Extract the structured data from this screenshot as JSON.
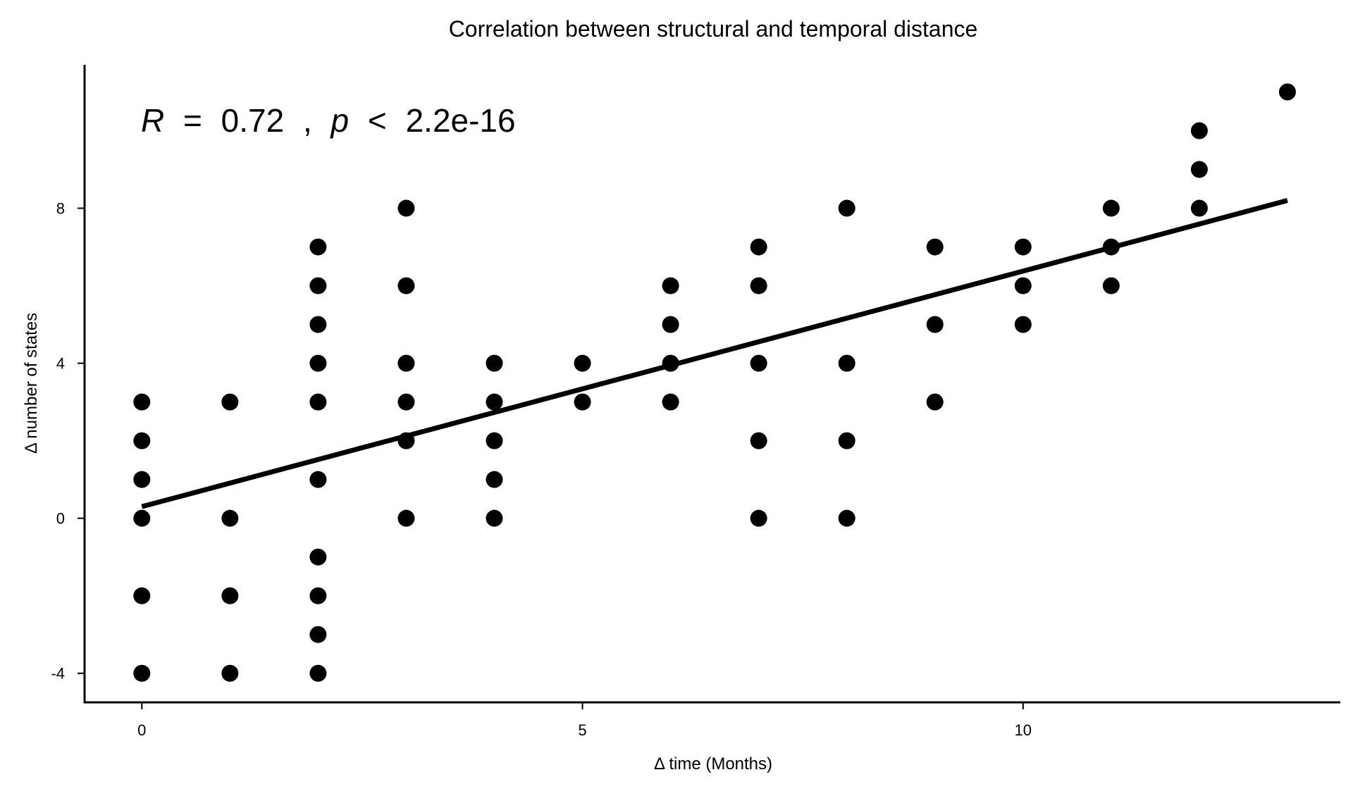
{
  "chart_data": {
    "type": "scatter",
    "title": "Correlation between structural and temporal distance",
    "xlabel": "Δ time (Months)",
    "ylabel": "Δ number of states",
    "xlim": [
      -0.65,
      13.6
    ],
    "ylim": [
      -4.75,
      11.7
    ],
    "x_ticks": [
      0,
      5,
      10
    ],
    "y_ticks": [
      -4,
      0,
      4,
      8
    ],
    "x_tick_labels": [
      "0",
      "5",
      "10"
    ],
    "y_tick_labels": [
      "-4",
      "0",
      "4",
      "8"
    ],
    "grid": false,
    "legend": "none",
    "point_color": "#000000",
    "annotation": {
      "R_symbol": "R",
      "equals": "=",
      "R_value": "0.72",
      "separator": ",",
      "p_symbol": "p",
      "less_than": "<",
      "p_value": "2.2e-16"
    },
    "fit_line": {
      "x": [
        0,
        13
      ],
      "y": [
        0.3,
        8.2
      ]
    },
    "points": [
      {
        "x": 0,
        "y": 3
      },
      {
        "x": 0,
        "y": 2
      },
      {
        "x": 0,
        "y": 1
      },
      {
        "x": 0,
        "y": 0
      },
      {
        "x": 0,
        "y": -2
      },
      {
        "x": 0,
        "y": -4
      },
      {
        "x": 1,
        "y": 3
      },
      {
        "x": 1,
        "y": 0
      },
      {
        "x": 1,
        "y": -2
      },
      {
        "x": 1,
        "y": -4
      },
      {
        "x": 2,
        "y": 7
      },
      {
        "x": 2,
        "y": 6
      },
      {
        "x": 2,
        "y": 5
      },
      {
        "x": 2,
        "y": 4
      },
      {
        "x": 2,
        "y": 3
      },
      {
        "x": 2,
        "y": 1
      },
      {
        "x": 2,
        "y": -1
      },
      {
        "x": 2,
        "y": -2
      },
      {
        "x": 2,
        "y": -3
      },
      {
        "x": 2,
        "y": -4
      },
      {
        "x": 3,
        "y": 8
      },
      {
        "x": 3,
        "y": 6
      },
      {
        "x": 3,
        "y": 4
      },
      {
        "x": 3,
        "y": 3
      },
      {
        "x": 3,
        "y": 2
      },
      {
        "x": 3,
        "y": 0
      },
      {
        "x": 4,
        "y": 4
      },
      {
        "x": 4,
        "y": 3
      },
      {
        "x": 4,
        "y": 2
      },
      {
        "x": 4,
        "y": 1
      },
      {
        "x": 4,
        "y": 0
      },
      {
        "x": 5,
        "y": 4
      },
      {
        "x": 5,
        "y": 3
      },
      {
        "x": 6,
        "y": 6
      },
      {
        "x": 6,
        "y": 5
      },
      {
        "x": 6,
        "y": 4
      },
      {
        "x": 6,
        "y": 3
      },
      {
        "x": 7,
        "y": 7
      },
      {
        "x": 7,
        "y": 6
      },
      {
        "x": 7,
        "y": 4
      },
      {
        "x": 7,
        "y": 2
      },
      {
        "x": 7,
        "y": 0
      },
      {
        "x": 8,
        "y": 8
      },
      {
        "x": 8,
        "y": 4
      },
      {
        "x": 8,
        "y": 2
      },
      {
        "x": 8,
        "y": 0
      },
      {
        "x": 9,
        "y": 7
      },
      {
        "x": 9,
        "y": 5
      },
      {
        "x": 9,
        "y": 3
      },
      {
        "x": 10,
        "y": 7
      },
      {
        "x": 10,
        "y": 6
      },
      {
        "x": 10,
        "y": 5
      },
      {
        "x": 11,
        "y": 8
      },
      {
        "x": 11,
        "y": 7
      },
      {
        "x": 11,
        "y": 6
      },
      {
        "x": 12,
        "y": 10
      },
      {
        "x": 12,
        "y": 9
      },
      {
        "x": 12,
        "y": 8
      },
      {
        "x": 13,
        "y": 11
      }
    ]
  }
}
